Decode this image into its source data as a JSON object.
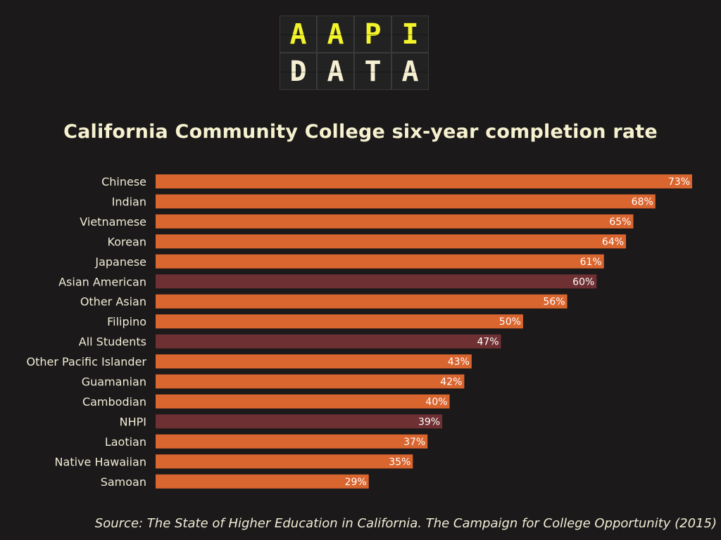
{
  "logo": {
    "top": [
      "A",
      "A",
      "P",
      "I"
    ],
    "bottom": [
      "D",
      "A",
      "T",
      "A"
    ]
  },
  "colors": {
    "background": "#1b191a",
    "bar_group": "#d9652f",
    "bar_aggregate": "#6e3033",
    "label": "#f1ecd6",
    "title": "#f6f1cf",
    "logo_top": "#f4f42b"
  },
  "chart_data": {
    "type": "bar",
    "orientation": "horizontal",
    "title": "California Community College six-year completion rate",
    "categories": [
      "Chinese",
      "Indian",
      "Vietnamese",
      "Korean",
      "Japanese",
      "Asian American",
      "Other Asian",
      "Filipino",
      "All Students",
      "Other Pacific Islander",
      "Guamanian",
      "Cambodian",
      "NHPI",
      "Laotian",
      "Native Hawaiian",
      "Samoan"
    ],
    "values": [
      73,
      68,
      65,
      64,
      61,
      60,
      56,
      50,
      47,
      43,
      42,
      40,
      39,
      37,
      35,
      29
    ],
    "value_labels": [
      "73%",
      "68%",
      "65%",
      "64%",
      "61%",
      "60%",
      "56%",
      "50%",
      "47%",
      "43%",
      "42%",
      "40%",
      "39%",
      "37%",
      "35%",
      "29%"
    ],
    "highlighted": [
      "Asian American",
      "All Students",
      "NHPI"
    ],
    "xlim": [
      0,
      73
    ],
    "grid": false
  },
  "source": "Source: The State of Higher Education in California. The Campaign for College Opportunity (2015)"
}
